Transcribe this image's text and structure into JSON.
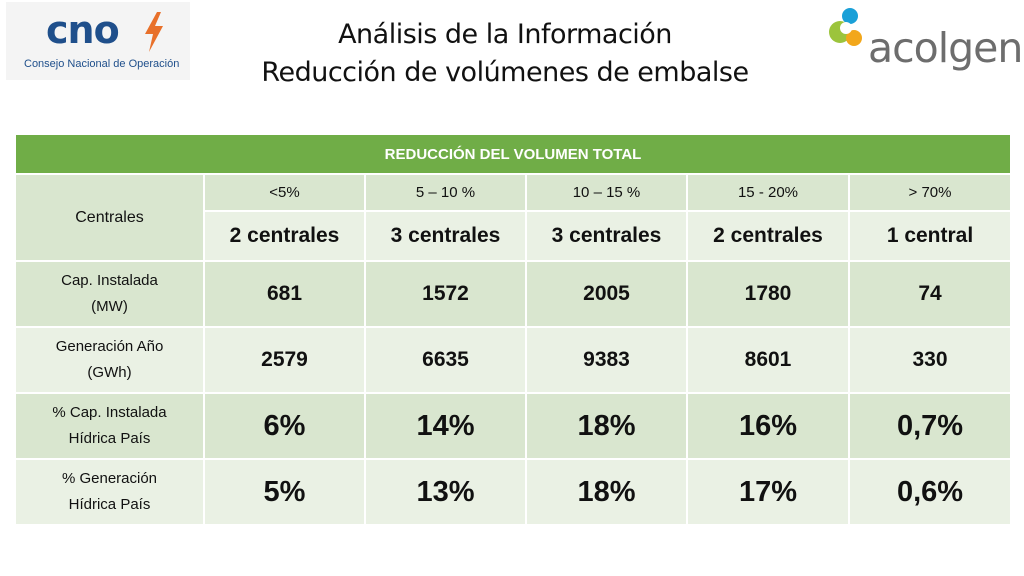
{
  "title": {
    "line1": "Análisis de la Información",
    "line2": "Reducción de volúmenes de embalse"
  },
  "logos": {
    "cno": {
      "word": "cno",
      "subtitle": "Consejo Nacional de Operación",
      "brand_color": "#1f4f8b",
      "bolt_color": "#e8702a"
    },
    "acolgen": {
      "word": "acolgen",
      "text_color": "#6d6d6d"
    }
  },
  "table": {
    "header": "REDUCCIÓN DEL VOLUMEN TOTAL",
    "header_color": "#70ad47",
    "row_colors": [
      "#d9e6cf",
      "#eaf1e4"
    ],
    "centrales_label": "Centrales",
    "ranges": [
      "<5%",
      "5 – 10 %",
      "10 – 15 %",
      "15 - 20%",
      "> 70%"
    ],
    "counts": [
      "2 centrales",
      "3 centrales",
      "3 centrales",
      "2 centrales",
      "1 central"
    ],
    "rows": [
      {
        "label_line1": "Cap. Instalada",
        "label_line2": "(MW)",
        "values": [
          "681",
          "1572",
          "2005",
          "1780",
          "74"
        ]
      },
      {
        "label_line1": "Generación Año",
        "label_line2": "(GWh)",
        "values": [
          "2579",
          "6635",
          "9383",
          "8601",
          "330"
        ]
      },
      {
        "label_line1": "% Cap. Instalada",
        "label_line2": "Hídrica País",
        "values": [
          "6%",
          "14%",
          "18%",
          "16%",
          "0,7%"
        ]
      },
      {
        "label_line1": "% Generación",
        "label_line2": "Hídrica País",
        "values": [
          "5%",
          "13%",
          "18%",
          "17%",
          "0,6%"
        ]
      }
    ]
  }
}
